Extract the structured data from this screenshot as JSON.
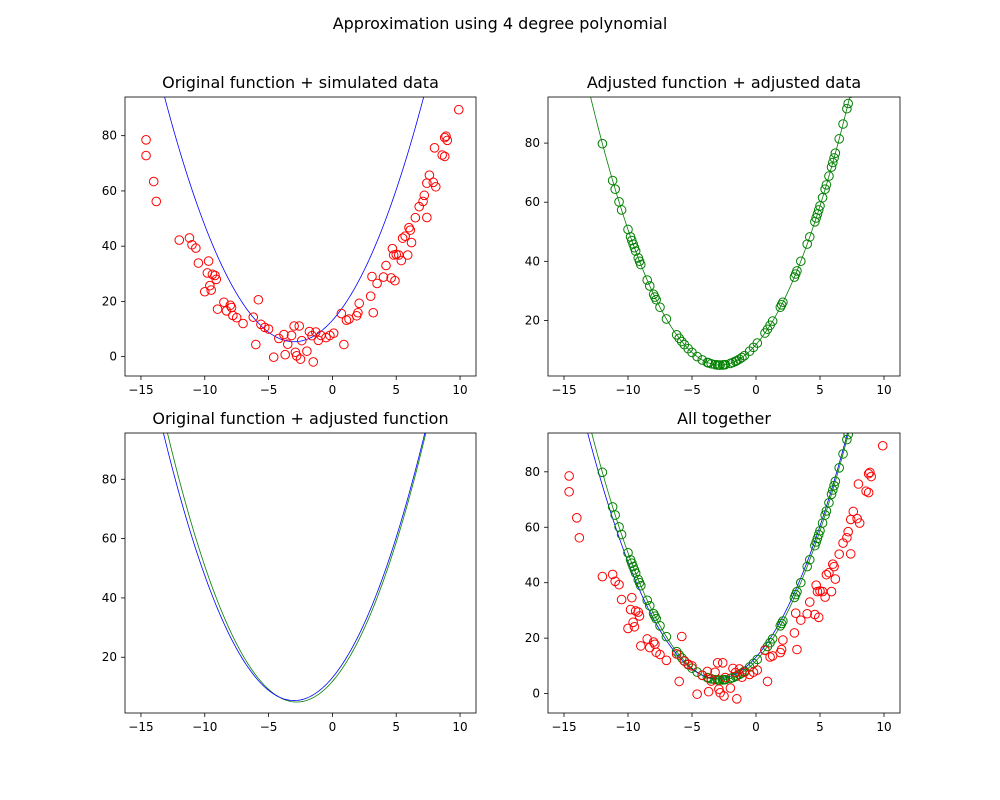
{
  "figure": {
    "title": "Approximation using 4 degree polynomial"
  },
  "colors": {
    "original": "#0000ff",
    "adjusted": "#008000",
    "simulated": "#ff0000"
  },
  "chart_data": [
    {
      "type": "scatter",
      "title": "Original function + simulated data",
      "xlabel": "",
      "ylabel": "",
      "xlim": [
        -16.25,
        11.25
      ],
      "ylim": [
        -7,
        94
      ],
      "xticks": [
        -15,
        -10,
        -5,
        0,
        5,
        10
      ],
      "xtick_labels": [
        "−15",
        "−10",
        "−5",
        "0",
        "5",
        "10"
      ],
      "yticks": [
        0,
        20,
        40,
        60,
        80
      ],
      "ytick_labels": [
        "0",
        "20",
        "40",
        "60",
        "80"
      ],
      "grid": false,
      "lines": [
        {
          "source": "original",
          "color": "#0000ff",
          "x_range": [
            -15,
            10
          ]
        }
      ],
      "scatters": [
        {
          "source": "simulated",
          "color": "#ff0000",
          "points": [
            [
              -14.6,
              78.5
            ],
            [
              -14.6,
              72.8
            ],
            [
              -14.0,
              63.4
            ],
            [
              -13.8,
              56.2
            ],
            [
              -12.0,
              42.2
            ],
            [
              -11.2,
              43.0
            ],
            [
              -11.0,
              40.5
            ],
            [
              -10.7,
              39.3
            ],
            [
              -10.5,
              33.9
            ],
            [
              -10.0,
              23.5
            ],
            [
              -9.8,
              30.3
            ],
            [
              -9.7,
              34.6
            ],
            [
              -9.6,
              25.7
            ],
            [
              -9.5,
              24.1
            ],
            [
              -9.4,
              29.8
            ],
            [
              -9.2,
              29.4
            ],
            [
              -9.1,
              28.0
            ],
            [
              -9.0,
              17.2
            ],
            [
              -8.5,
              19.7
            ],
            [
              -8.3,
              16.6
            ],
            [
              -8.0,
              18.6
            ],
            [
              -7.9,
              17.8
            ],
            [
              -7.8,
              14.9
            ],
            [
              -7.5,
              14.1
            ],
            [
              -7.0,
              12.0
            ],
            [
              -6.2,
              14.3
            ],
            [
              -6.0,
              4.4
            ],
            [
              -5.8,
              20.6
            ],
            [
              -5.6,
              11.7
            ],
            [
              -5.3,
              10.6
            ],
            [
              -5.0,
              10.0
            ],
            [
              -4.6,
              -0.2
            ],
            [
              -4.2,
              6.6
            ],
            [
              -3.8,
              8.0
            ],
            [
              -3.7,
              0.7
            ],
            [
              -3.5,
              4.5
            ],
            [
              -3.2,
              7.7
            ],
            [
              -3.0,
              11.1
            ],
            [
              -2.9,
              1.6
            ],
            [
              -2.8,
              0.3
            ],
            [
              -2.6,
              11.1
            ],
            [
              -2.5,
              -0.9
            ],
            [
              -2.4,
              5.8
            ],
            [
              -2.0,
              2.0
            ],
            [
              -1.8,
              9.1
            ],
            [
              -1.6,
              7.6
            ],
            [
              -1.5,
              -1.9
            ],
            [
              -1.3,
              8.9
            ],
            [
              -1.1,
              5.9
            ],
            [
              -0.9,
              7.7
            ],
            [
              -0.5,
              6.9
            ],
            [
              -0.2,
              7.7
            ],
            [
              0.1,
              8.5
            ],
            [
              0.7,
              15.6
            ],
            [
              0.9,
              4.4
            ],
            [
              1.1,
              13.2
            ],
            [
              1.3,
              13.6
            ],
            [
              1.9,
              14.8
            ],
            [
              2.0,
              15.9
            ],
            [
              2.1,
              19.3
            ],
            [
              3.0,
              21.9
            ],
            [
              3.1,
              29.0
            ],
            [
              3.2,
              15.9
            ],
            [
              3.5,
              26.5
            ],
            [
              4.0,
              28.8
            ],
            [
              4.2,
              33.0
            ],
            [
              4.6,
              28.5
            ],
            [
              4.7,
              39.1
            ],
            [
              4.8,
              36.8
            ],
            [
              4.9,
              27.5
            ],
            [
              5.0,
              37.0
            ],
            [
              5.2,
              36.8
            ],
            [
              5.4,
              34.8
            ],
            [
              5.5,
              42.9
            ],
            [
              5.7,
              43.6
            ],
            [
              5.9,
              36.8
            ],
            [
              6.0,
              46.7
            ],
            [
              6.1,
              45.8
            ],
            [
              6.2,
              41.3
            ],
            [
              6.5,
              50.3
            ],
            [
              6.8,
              54.3
            ],
            [
              7.1,
              56.2
            ],
            [
              7.2,
              58.4
            ],
            [
              7.4,
              62.8
            ],
            [
              7.4,
              50.4
            ],
            [
              7.6,
              65.7
            ],
            [
              7.9,
              63.1
            ],
            [
              8.1,
              61.5
            ],
            [
              8.0,
              75.6
            ],
            [
              8.6,
              73.0
            ],
            [
              8.8,
              72.5
            ],
            [
              8.8,
              79.3
            ],
            [
              8.9,
              79.8
            ],
            [
              9.0,
              78.3
            ],
            [
              9.9,
              89.4
            ]
          ]
        }
      ]
    },
    {
      "type": "scatter",
      "title": "Adjusted function + adjusted data",
      "xlabel": "",
      "ylabel": "",
      "xlim": [
        -16.25,
        11.25
      ],
      "ylim": [
        1.2,
        95.6
      ],
      "xticks": [
        -15,
        -10,
        -5,
        0,
        5,
        10
      ],
      "xtick_labels": [
        "−15",
        "−10",
        "−5",
        "0",
        "5",
        "10"
      ],
      "yticks": [
        20,
        40,
        60,
        80
      ],
      "ytick_labels": [
        "20",
        "40",
        "60",
        "80"
      ],
      "grid": false,
      "lines": [
        {
          "source": "adjusted",
          "color": "#008000",
          "x_range": [
            -15,
            10
          ]
        }
      ],
      "scatters": [
        {
          "source": "adjusted",
          "color": "#008000",
          "x": [
            -14.6,
            -14.6,
            -14.0,
            -13.8,
            -12.0,
            -11.2,
            -11.0,
            -10.7,
            -10.5,
            -10.0,
            -9.8,
            -9.7,
            -9.6,
            -9.5,
            -9.4,
            -9.2,
            -9.1,
            -9.0,
            -8.5,
            -8.3,
            -8.0,
            -7.9,
            -7.8,
            -7.5,
            -7.0,
            -6.2,
            -6.0,
            -5.8,
            -5.6,
            -5.3,
            -5.0,
            -4.6,
            -4.2,
            -3.8,
            -3.7,
            -3.5,
            -3.2,
            -3.0,
            -2.9,
            -2.8,
            -2.6,
            -2.5,
            -2.4,
            -2.0,
            -1.8,
            -1.6,
            -1.5,
            -1.3,
            -1.1,
            -0.9,
            -0.5,
            -0.2,
            0.1,
            0.7,
            0.9,
            1.1,
            1.3,
            1.9,
            2.0,
            2.1,
            3.0,
            3.1,
            3.2,
            3.5,
            4.0,
            4.2,
            4.6,
            4.7,
            4.8,
            4.9,
            5.0,
            5.2,
            5.4,
            5.5,
            5.7,
            5.9,
            6.0,
            6.1,
            6.2,
            6.5,
            6.8,
            7.1,
            7.2,
            7.4,
            7.4,
            7.6,
            7.9,
            8.1,
            8.0,
            8.6,
            8.8,
            8.8,
            8.9,
            9.0,
            9.9
          ]
        }
      ]
    },
    {
      "type": "line",
      "title": "Original function + adjusted function",
      "xlabel": "",
      "ylabel": "",
      "xlim": [
        -16.25,
        11.25
      ],
      "ylim": [
        1.2,
        95.6
      ],
      "xticks": [
        -15,
        -10,
        -5,
        0,
        5,
        10
      ],
      "xtick_labels": [
        "−15",
        "−10",
        "−5",
        "0",
        "5",
        "10"
      ],
      "yticks": [
        20,
        40,
        60,
        80
      ],
      "ytick_labels": [
        "20",
        "40",
        "60",
        "80"
      ],
      "grid": false,
      "lines": [
        {
          "source": "adjusted",
          "color": "#008000",
          "x_range": [
            -15,
            10
          ]
        },
        {
          "source": "original",
          "color": "#0000ff",
          "x_range": [
            -15,
            10
          ]
        }
      ],
      "scatters": []
    },
    {
      "type": "scatter",
      "title": "All together",
      "xlabel": "",
      "ylabel": "",
      "xlim": [
        -16.25,
        11.25
      ],
      "ylim": [
        -7,
        94
      ],
      "xticks": [
        -15,
        -10,
        -5,
        0,
        5,
        10
      ],
      "xtick_labels": [
        "−15",
        "−10",
        "−5",
        "0",
        "5",
        "10"
      ],
      "yticks": [
        0,
        20,
        40,
        60,
        80
      ],
      "ytick_labels": [
        "0",
        "20",
        "40",
        "60",
        "80"
      ],
      "grid": false,
      "lines": [
        {
          "source": "adjusted",
          "color": "#008000",
          "x_range": [
            -15,
            10
          ]
        },
        {
          "source": "original",
          "color": "#0000ff",
          "x_range": [
            -15,
            10
          ]
        }
      ],
      "scatters": [
        {
          "source": "adjusted_from_panel",
          "panel": 1,
          "color": "#008000"
        },
        {
          "source": "from_panel",
          "panel": 0,
          "color": "#ff0000"
        }
      ]
    }
  ]
}
